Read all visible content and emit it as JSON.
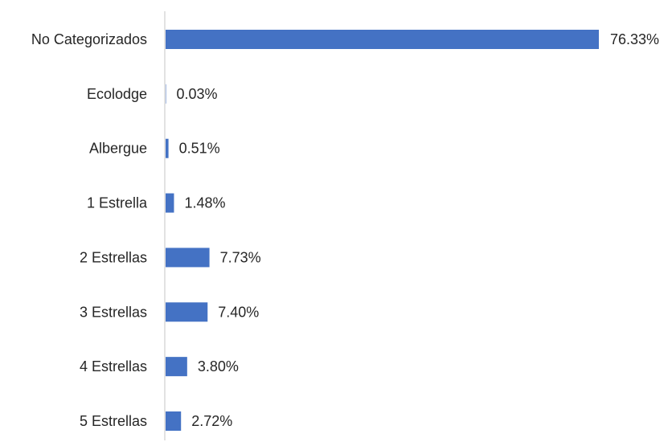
{
  "chart_data": {
    "type": "bar",
    "orientation": "horizontal",
    "categories": [
      "No Categorizados",
      "Ecolodge",
      "Albergue",
      "1 Estrella",
      "2 Estrellas",
      "3 Estrellas",
      "4 Estrellas",
      "5 Estrellas"
    ],
    "values": [
      76.33,
      0.03,
      0.51,
      1.48,
      7.73,
      7.4,
      3.8,
      2.72
    ],
    "value_labels": [
      "76.33%",
      "0.03%",
      "0.51%",
      "1.48%",
      "7.73%",
      "7.40%",
      "3.80%",
      "2.72%"
    ],
    "title": "",
    "xlabel": "",
    "ylabel": "",
    "xlim": [
      0,
      76.33
    ],
    "grid": false,
    "legend": "none",
    "bar_color": "#4472C4",
    "axis_color": "#D9D9D9",
    "text_color": "#262626"
  }
}
